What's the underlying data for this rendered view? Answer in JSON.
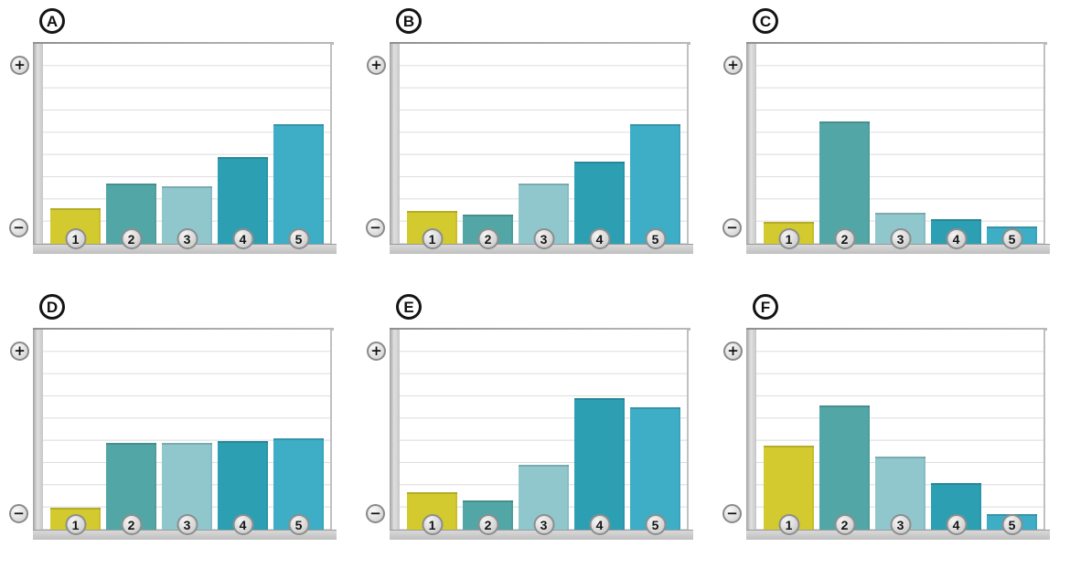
{
  "figure": {
    "background": "#ffffff",
    "rows": 2,
    "columns": 3
  },
  "axis": {
    "plus_label": "+",
    "minus_label": "−",
    "gridline_count": 8,
    "scale_max": 9,
    "category_labels": [
      "1",
      "2",
      "3",
      "4",
      "5"
    ]
  },
  "palette": {
    "bar_colors": [
      "#d3ca2f",
      "#52a7a6",
      "#8fc7cd",
      "#2d9fb3",
      "#3eadc6"
    ],
    "gridline": "#dcdcdc",
    "plot_background": "#ffffff",
    "axis_gray": "#c2c2c2",
    "badge_border": "#8d8d8d",
    "letter_border": "#141414"
  },
  "chart_data": [
    {
      "type": "bar",
      "panel": "A",
      "categories": [
        "1",
        "2",
        "3",
        "4",
        "5"
      ],
      "values": [
        1.6,
        2.7,
        2.6,
        3.9,
        5.4
      ],
      "ylim": [
        0,
        9
      ],
      "grid": true,
      "y_axis_endpoints": {
        "top": "+",
        "bottom": "−"
      }
    },
    {
      "type": "bar",
      "panel": "B",
      "categories": [
        "1",
        "2",
        "3",
        "4",
        "5"
      ],
      "values": [
        1.5,
        1.3,
        2.7,
        3.7,
        5.4
      ],
      "ylim": [
        0,
        9
      ],
      "grid": true,
      "y_axis_endpoints": {
        "top": "+",
        "bottom": "−"
      }
    },
    {
      "type": "bar",
      "panel": "C",
      "categories": [
        "1",
        "2",
        "3",
        "4",
        "5"
      ],
      "values": [
        1.0,
        5.5,
        1.4,
        1.1,
        0.8
      ],
      "ylim": [
        0,
        9
      ],
      "grid": true,
      "y_axis_endpoints": {
        "top": "+",
        "bottom": "−"
      }
    },
    {
      "type": "bar",
      "panel": "D",
      "categories": [
        "1",
        "2",
        "3",
        "4",
        "5"
      ],
      "values": [
        1.0,
        3.9,
        3.9,
        4.0,
        4.1
      ],
      "ylim": [
        0,
        9
      ],
      "grid": true,
      "y_axis_endpoints": {
        "top": "+",
        "bottom": "−"
      }
    },
    {
      "type": "bar",
      "panel": "E",
      "categories": [
        "1",
        "2",
        "3",
        "4",
        "5"
      ],
      "values": [
        1.7,
        1.3,
        2.9,
        5.9,
        5.5
      ],
      "ylim": [
        0,
        9
      ],
      "grid": true,
      "y_axis_endpoints": {
        "top": "+",
        "bottom": "−"
      }
    },
    {
      "type": "bar",
      "panel": "F",
      "categories": [
        "1",
        "2",
        "3",
        "4",
        "5"
      ],
      "values": [
        3.8,
        5.6,
        3.3,
        2.1,
        0.7
      ],
      "ylim": [
        0,
        9
      ],
      "grid": true,
      "y_axis_endpoints": {
        "top": "+",
        "bottom": "−"
      }
    }
  ]
}
